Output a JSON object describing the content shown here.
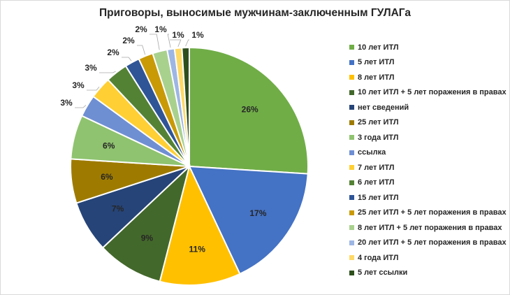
{
  "chart_data": {
    "type": "pie",
    "title": "Приговоры, выносимые мужчинам-заключенным ГУЛАГа",
    "legend_position": "right",
    "slices": [
      {
        "label": "10 лет ИТЛ",
        "value": 26,
        "data_label": "26%",
        "color": "#70ad47"
      },
      {
        "label": "5 лет ИТЛ",
        "value": 17,
        "data_label": "17%",
        "color": "#4472c4"
      },
      {
        "label": "8 лет ИТЛ",
        "value": 11,
        "data_label": "11%",
        "color": "#ffc000"
      },
      {
        "label": "10 лет ИТЛ + 5 лет поражения в правах",
        "value": 9,
        "data_label": "9%",
        "color": "#43682b"
      },
      {
        "label": "нет сведений",
        "value": 7,
        "data_label": "7%",
        "color": "#264478"
      },
      {
        "label": "25 лет ИТЛ",
        "value": 6,
        "data_label": "6%",
        "color": "#9e7b00"
      },
      {
        "label": "3 года ИТЛ",
        "value": 6,
        "data_label": "6%",
        "color": "#8fc36f"
      },
      {
        "label": "ссылка",
        "value": 3,
        "data_label": "3%",
        "color": "#6f8fd3"
      },
      {
        "label": "7 лет ИТЛ",
        "value": 3,
        "data_label": "3%",
        "color": "#ffcf33"
      },
      {
        "label": "6 лет ИТЛ",
        "value": 3,
        "data_label": "3%",
        "color": "#548235"
      },
      {
        "label": "15 лет ИТЛ",
        "value": 2,
        "data_label": "2%",
        "color": "#2f5597"
      },
      {
        "label": "25 лет ИТЛ + 5 лет поражения в правах",
        "value": 2,
        "data_label": "2%",
        "color": "#c99a06"
      },
      {
        "label": "8 лет ИТЛ + 5 лет поражения в правах",
        "value": 2,
        "data_label": "2%",
        "color": "#a9d18e"
      },
      {
        "label": "20 лет ИТЛ + 5 лет поражения в правах",
        "value": 1,
        "data_label": "1%",
        "color": "#9db6e4"
      },
      {
        "label": "4 года ИТЛ",
        "value": 1,
        "data_label": "1%",
        "color": "#ffd966"
      },
      {
        "label": "5 лет ссылки",
        "value": 1,
        "data_label": "1%",
        "color": "#2e4f1c"
      }
    ]
  }
}
